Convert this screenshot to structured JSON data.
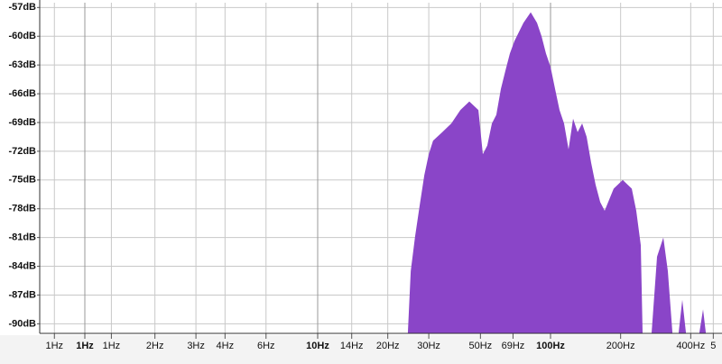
{
  "chart_data": {
    "type": "area",
    "log_x": true,
    "grid": true,
    "color": "#8a45c8",
    "xlim": [
      0.64,
      545
    ],
    "ylim": [
      -91,
      -56.5
    ],
    "xticks": [
      {
        "value": 0.74,
        "label": "1Hz"
      },
      {
        "value": 1,
        "label": "1Hz",
        "bold": true
      },
      {
        "value": 1.3,
        "label": "1Hz"
      },
      {
        "value": 2,
        "label": "2Hz"
      },
      {
        "value": 3,
        "label": "3Hz"
      },
      {
        "value": 4,
        "label": "4Hz"
      },
      {
        "value": 6,
        "label": "6Hz"
      },
      {
        "value": 10,
        "label": "10Hz",
        "bold": true
      },
      {
        "value": 14,
        "label": "14Hz"
      },
      {
        "value": 20,
        "label": "20Hz"
      },
      {
        "value": 30,
        "label": "30Hz"
      },
      {
        "value": 50,
        "label": "50Hz"
      },
      {
        "value": 69,
        "label": "69Hz"
      },
      {
        "value": 100,
        "label": "100Hz",
        "bold": true
      },
      {
        "value": 200,
        "label": "200Hz"
      },
      {
        "value": 400,
        "label": "400Hz"
      },
      {
        "value": 500,
        "label": "5"
      }
    ],
    "yticks": [
      {
        "value": -57,
        "label": "-57dB"
      },
      {
        "value": -60,
        "label": "-60dB"
      },
      {
        "value": -63,
        "label": "-63dB"
      },
      {
        "value": -66,
        "label": "-66dB"
      },
      {
        "value": -69,
        "label": "-69dB"
      },
      {
        "value": -72,
        "label": "-72dB"
      },
      {
        "value": -75,
        "label": "-75dB"
      },
      {
        "value": -78,
        "label": "-78dB"
      },
      {
        "value": -81,
        "label": "-81dB"
      },
      {
        "value": -84,
        "label": "-84dB"
      },
      {
        "value": -87,
        "label": "-87dB"
      },
      {
        "value": -90,
        "label": "-90dB"
      }
    ],
    "x": [
      24.4,
      25.1,
      26.2,
      27.4,
      28.7,
      30.0,
      31.3,
      34.3,
      37.5,
      41.0,
      44.8,
      49.0,
      51.2,
      53.5,
      56.0,
      58.5,
      61.2,
      64.0,
      66.9,
      70.0,
      76.5,
      82.2,
      87.5,
      91.5,
      95.6,
      100,
      104.6,
      109.3,
      114.3,
      119.5,
      125.0,
      130.7,
      136.7,
      142.9,
      149.4,
      156.2,
      163.4,
      170.8,
      186.7,
      204.2,
      223.3,
      233.4,
      244.1,
      248.5,
      null,
      271.8,
      286.7,
      305.1,
      319.0,
      333.7,
      null,
      355.1,
      368.0,
      381.4,
      null,
      436.0,
      451.9,
      464.2
    ],
    "values": [
      -90.9,
      -84.5,
      -80.9,
      -77.7,
      -74.5,
      -72.3,
      -70.9,
      -70.0,
      -69.1,
      -67.7,
      -66.8,
      -67.7,
      -72.3,
      -71.4,
      -69.1,
      -68.2,
      -65.5,
      -63.6,
      -61.8,
      -60.5,
      -58.6,
      -57.5,
      -58.6,
      -60.0,
      -61.8,
      -63.2,
      -65.5,
      -67.7,
      -69.1,
      -71.8,
      -68.6,
      -70.0,
      -69.1,
      -70.5,
      -73.2,
      -75.5,
      -77.3,
      -78.2,
      -75.9,
      -75.0,
      -75.9,
      -78.2,
      -81.8,
      -90.9,
      null,
      -90.9,
      -83.0,
      -81.0,
      -84.5,
      -90.9,
      null,
      -90.9,
      -87.5,
      -90.9,
      null,
      -90.9,
      -88.5,
      -90.9
    ]
  }
}
